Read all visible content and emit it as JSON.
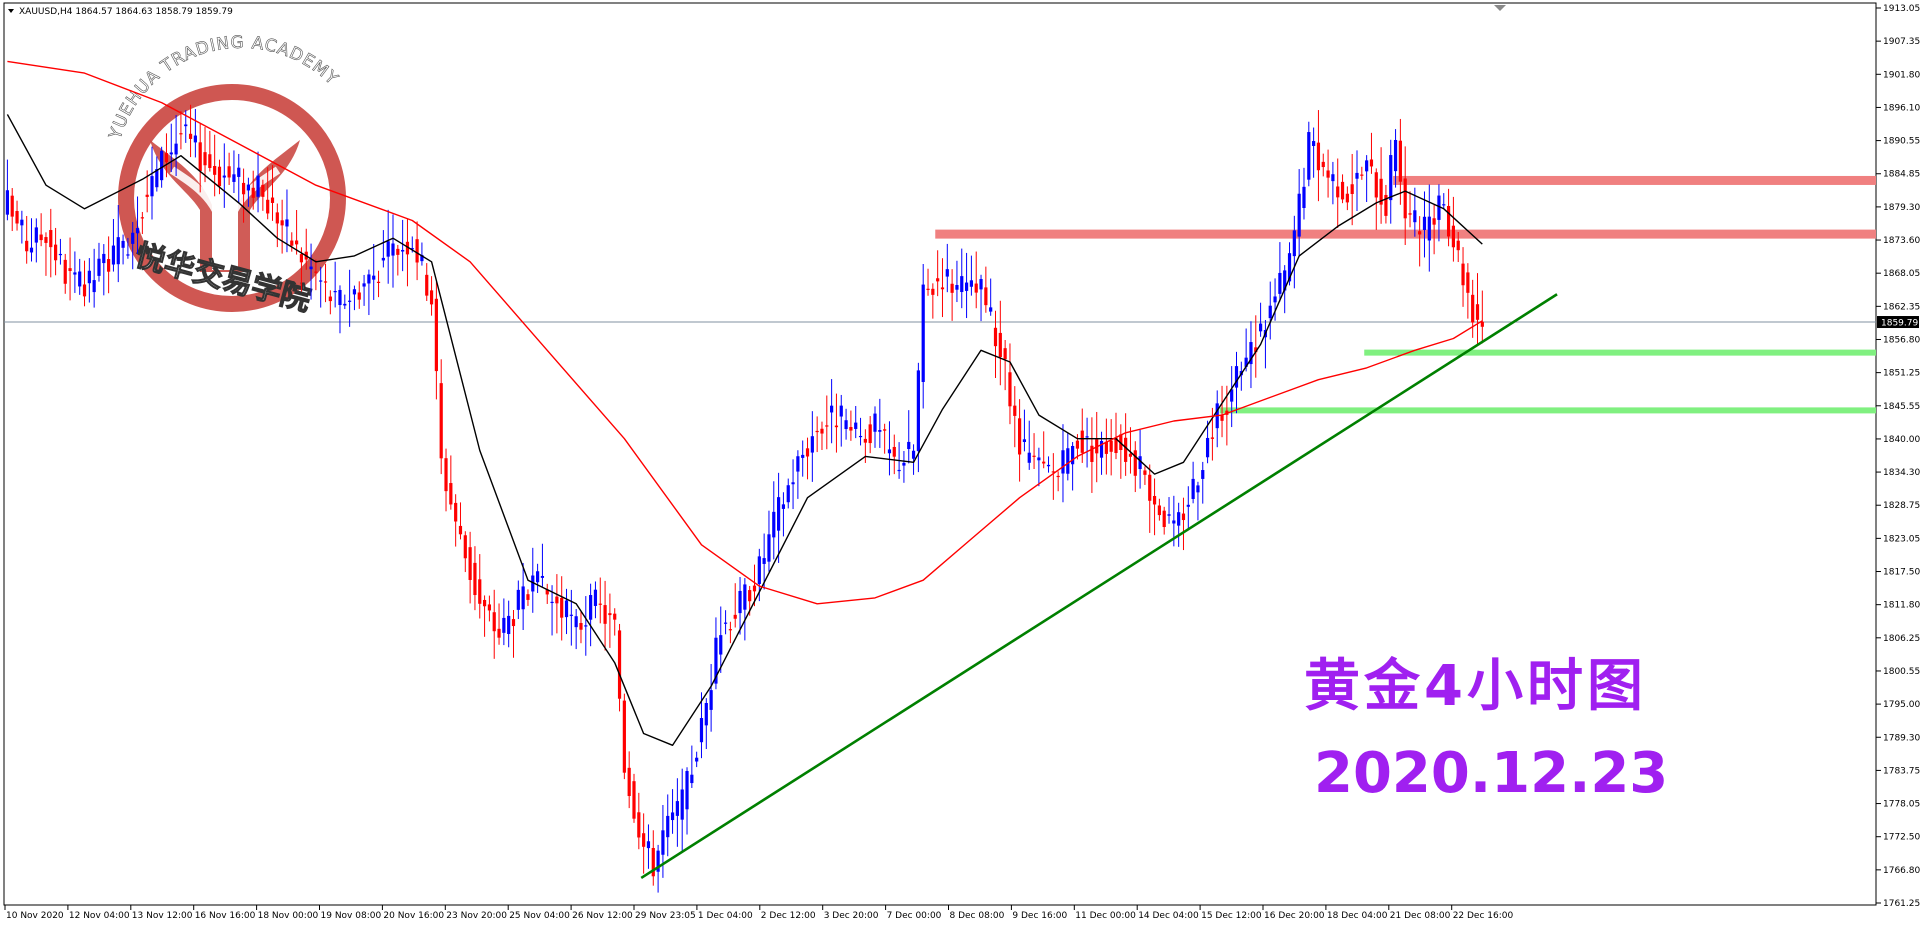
{
  "header": {
    "symbol_line": "XAUUSD,H4  1864.57 1864.63 1858.79 1859.79"
  },
  "watermark": {
    "arc_text": "YUEHUA TRADING ACADEMY",
    "cn_text": "悦华交易学院",
    "color": "#c8403a"
  },
  "annotation": {
    "title": "黄金4小时图",
    "date": "2020.12.23",
    "color": "#a020f0"
  },
  "colors": {
    "bull": "#0000ff",
    "bear": "#ff0000",
    "ma_fast": "#000000",
    "ma_slow": "#ff0000",
    "resistance": "#f08080",
    "support": "#80f080",
    "trendline": "#008000",
    "price_line": "#8090a0"
  },
  "chart_data": {
    "type": "candlestick",
    "symbol": "XAUUSD",
    "timeframe": "H4",
    "ylim": [
      1761.25,
      1913.05
    ],
    "y_ticks": [
      "1913.05",
      "1907.35",
      "1901.80",
      "1896.10",
      "1890.55",
      "1884.85",
      "1879.30",
      "1873.60",
      "1868.05",
      "1862.35",
      "1856.80",
      "1851.25",
      "1845.55",
      "1840.00",
      "1834.30",
      "1828.75",
      "1823.05",
      "1817.50",
      "1811.80",
      "1806.25",
      "1800.55",
      "1795.00",
      "1789.30",
      "1783.75",
      "1778.05",
      "1772.50",
      "1766.80",
      "1761.25"
    ],
    "x_ticks": [
      "10 Nov 2020",
      "12 Nov 04:00",
      "13 Nov 12:00",
      "16 Nov 16:00",
      "18 Nov 00:00",
      "19 Nov 08:00",
      "20 Nov 16:00",
      "23 Nov 20:00",
      "25 Nov 04:00",
      "26 Nov 12:00",
      "29 Nov 23:05",
      "1 Dec 04:00",
      "2 Dec 12:00",
      "3 Dec 20:00",
      "7 Dec 00:00",
      "8 Dec 08:00",
      "9 Dec 16:00",
      "11 Dec 00:00",
      "14 Dec 04:00",
      "15 Dec 12:00",
      "16 Dec 20:00",
      "18 Dec 04:00",
      "21 Dec 08:00",
      "22 Dec 16:00"
    ],
    "current_price": "1859.79",
    "anchors": [
      [
        0,
        1880
      ],
      [
        4,
        1873
      ],
      [
        8,
        1875
      ],
      [
        12,
        1868
      ],
      [
        16,
        1865
      ],
      [
        20,
        1870
      ],
      [
        24,
        1872
      ],
      [
        28,
        1880
      ],
      [
        32,
        1887
      ],
      [
        36,
        1892
      ],
      [
        40,
        1888
      ],
      [
        44,
        1885
      ],
      [
        48,
        1884
      ],
      [
        52,
        1882
      ],
      [
        56,
        1878
      ],
      [
        60,
        1872
      ],
      [
        64,
        1868
      ],
      [
        68,
        1863
      ],
      [
        72,
        1865
      ],
      [
        76,
        1868
      ],
      [
        80,
        1872
      ],
      [
        84,
        1874
      ],
      [
        88,
        1864
      ],
      [
        90,
        1836
      ],
      [
        94,
        1823
      ],
      [
        98,
        1812
      ],
      [
        102,
        1807
      ],
      [
        106,
        1812
      ],
      [
        110,
        1815
      ],
      [
        114,
        1812
      ],
      [
        118,
        1808
      ],
      [
        122,
        1812
      ],
      [
        126,
        1808
      ],
      [
        128,
        1785
      ],
      [
        130,
        1778
      ],
      [
        132,
        1771
      ],
      [
        134,
        1768
      ],
      [
        136,
        1773
      ],
      [
        140,
        1778
      ],
      [
        144,
        1791
      ],
      [
        148,
        1808
      ],
      [
        152,
        1812
      ],
      [
        156,
        1818
      ],
      [
        160,
        1828
      ],
      [
        164,
        1836
      ],
      [
        168,
        1842
      ],
      [
        172,
        1844
      ],
      [
        176,
        1840
      ],
      [
        180,
        1842
      ],
      [
        184,
        1836
      ],
      [
        188,
        1838
      ],
      [
        190,
        1864
      ],
      [
        194,
        1868
      ],
      [
        198,
        1865
      ],
      [
        202,
        1865
      ],
      [
        206,
        1855
      ],
      [
        210,
        1838
      ],
      [
        214,
        1835
      ],
      [
        218,
        1834
      ],
      [
        222,
        1840
      ],
      [
        226,
        1838
      ],
      [
        230,
        1840
      ],
      [
        234,
        1836
      ],
      [
        238,
        1830
      ],
      [
        242,
        1824
      ],
      [
        246,
        1832
      ],
      [
        250,
        1842
      ],
      [
        254,
        1848
      ],
      [
        258,
        1855
      ],
      [
        262,
        1862
      ],
      [
        266,
        1870
      ],
      [
        270,
        1890
      ],
      [
        274,
        1885
      ],
      [
        278,
        1882
      ],
      [
        282,
        1886
      ],
      [
        286,
        1880
      ],
      [
        288,
        1892
      ],
      [
        290,
        1878
      ],
      [
        294,
        1875
      ],
      [
        298,
        1880
      ],
      [
        302,
        1868
      ],
      [
        304,
        1862
      ],
      [
        306,
        1860
      ]
    ],
    "moving_averages": [
      {
        "period": "fast",
        "color": "#000000",
        "values": [
          [
            0,
            1895
          ],
          [
            8,
            1883
          ],
          [
            16,
            1879
          ],
          [
            28,
            1884
          ],
          [
            36,
            1888
          ],
          [
            48,
            1880
          ],
          [
            56,
            1874
          ],
          [
            64,
            1870
          ],
          [
            72,
            1871
          ],
          [
            80,
            1874
          ],
          [
            88,
            1870
          ],
          [
            98,
            1838
          ],
          [
            108,
            1816
          ],
          [
            118,
            1812
          ],
          [
            126,
            1802
          ],
          [
            132,
            1790
          ],
          [
            138,
            1788
          ],
          [
            146,
            1798
          ],
          [
            156,
            1814
          ],
          [
            166,
            1830
          ],
          [
            178,
            1837
          ],
          [
            188,
            1836
          ],
          [
            194,
            1845
          ],
          [
            202,
            1855
          ],
          [
            208,
            1853
          ],
          [
            214,
            1844
          ],
          [
            222,
            1840
          ],
          [
            230,
            1840
          ],
          [
            238,
            1834
          ],
          [
            244,
            1836
          ],
          [
            252,
            1846
          ],
          [
            260,
            1856
          ],
          [
            268,
            1871
          ],
          [
            276,
            1876
          ],
          [
            284,
            1880
          ],
          [
            290,
            1882
          ],
          [
            298,
            1879
          ],
          [
            306,
            1873
          ]
        ]
      },
      {
        "period": "slow",
        "color": "#ff0000",
        "values": [
          [
            0,
            1904
          ],
          [
            16,
            1902
          ],
          [
            32,
            1897
          ],
          [
            48,
            1890
          ],
          [
            64,
            1883
          ],
          [
            84,
            1877
          ],
          [
            96,
            1870
          ],
          [
            112,
            1855
          ],
          [
            128,
            1840
          ],
          [
            144,
            1822
          ],
          [
            156,
            1815
          ],
          [
            168,
            1812
          ],
          [
            180,
            1813
          ],
          [
            190,
            1816
          ],
          [
            200,
            1823
          ],
          [
            210,
            1830
          ],
          [
            222,
            1837
          ],
          [
            232,
            1841
          ],
          [
            242,
            1843
          ],
          [
            252,
            1844
          ],
          [
            262,
            1847
          ],
          [
            272,
            1850
          ],
          [
            282,
            1852
          ],
          [
            292,
            1855
          ],
          [
            300,
            1857
          ],
          [
            306,
            1860
          ]
        ]
      }
    ],
    "levels": [
      {
        "kind": "resistance",
        "price": 1883.8,
        "from_bar": 288
      },
      {
        "kind": "resistance",
        "price": 1874.7,
        "from_bar": 193
      },
      {
        "kind": "support",
        "price": 1854.6,
        "from_bar": 282
      },
      {
        "kind": "support",
        "price": 1844.8,
        "from_bar": 252
      }
    ],
    "trendline": [
      [
        132,
        1765.5
      ],
      [
        322,
        1864.5
      ]
    ]
  }
}
